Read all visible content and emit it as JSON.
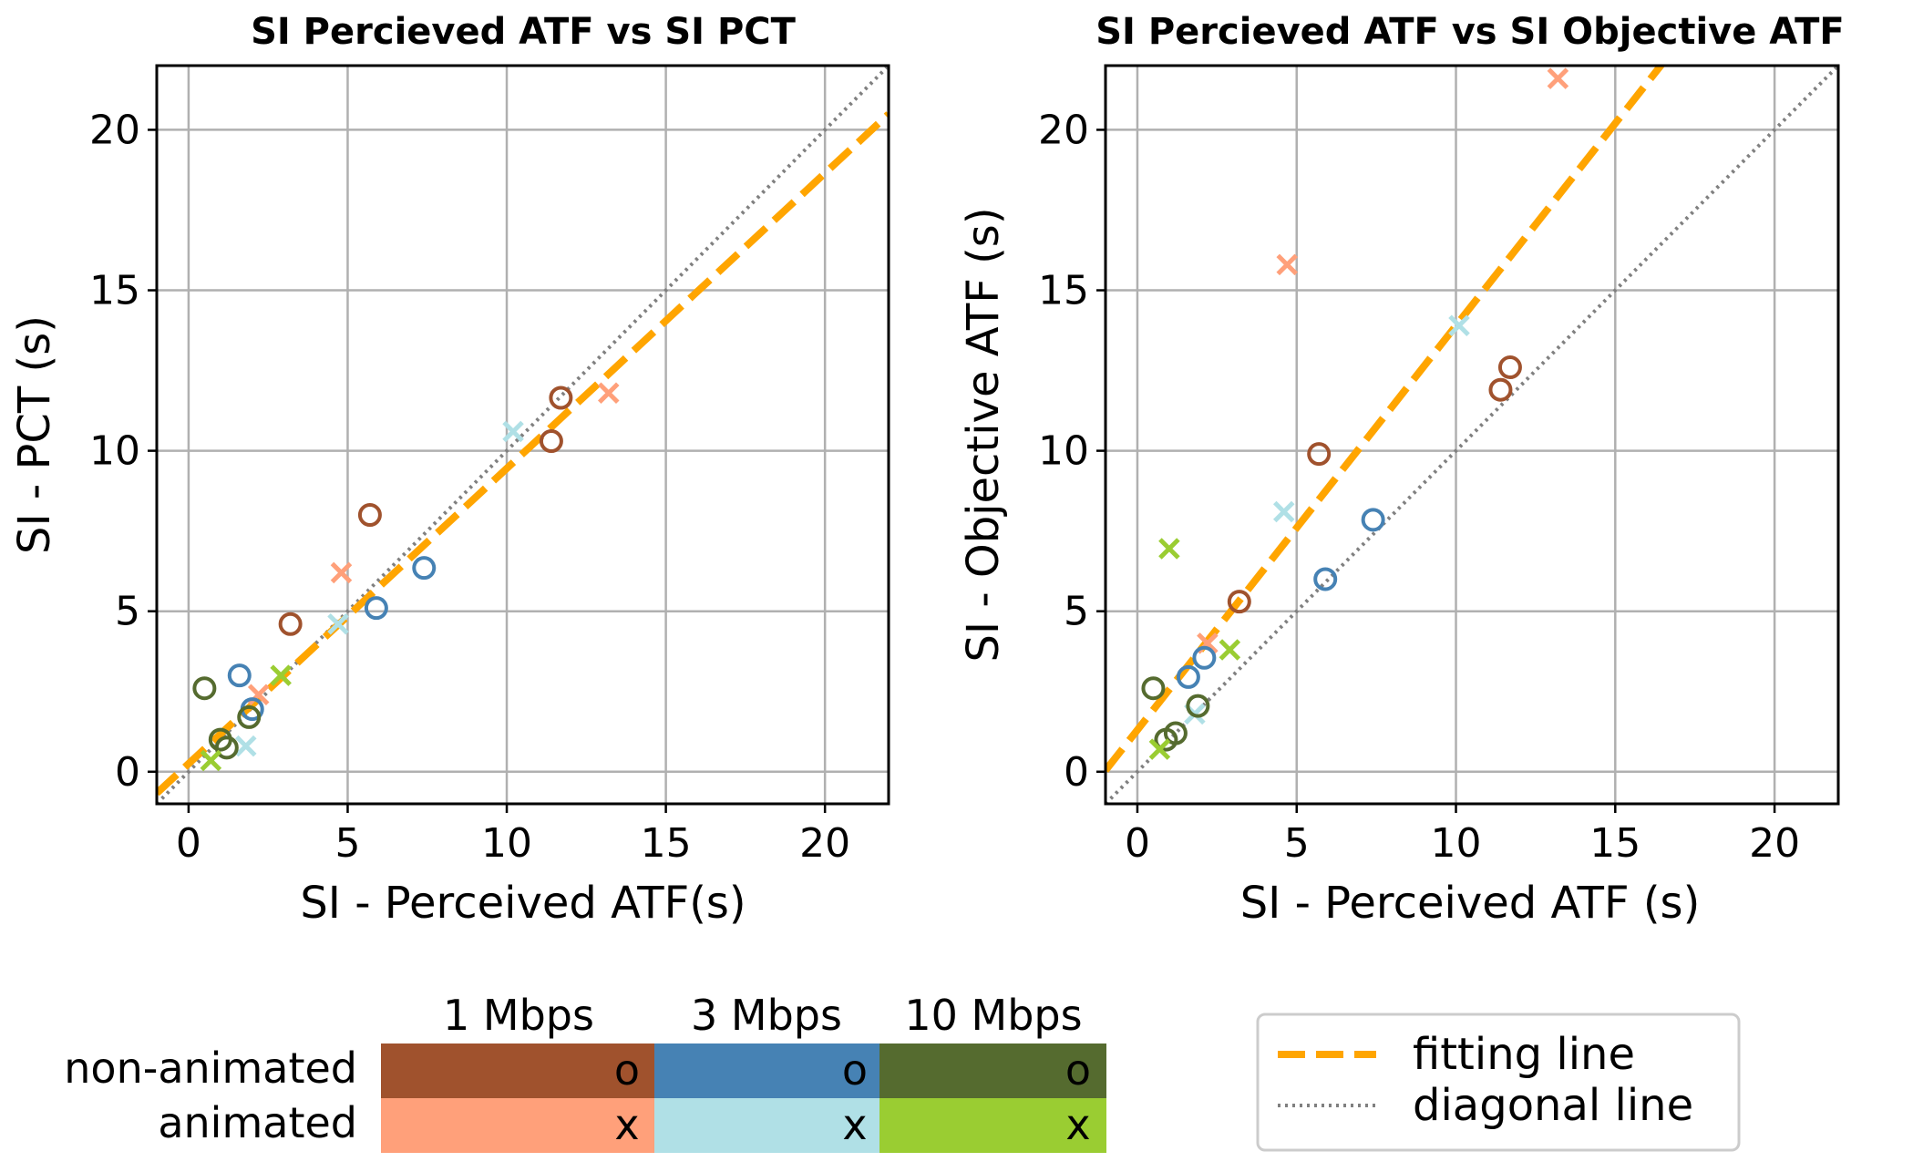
{
  "colors": {
    "fitting": "#FFA500",
    "diagonal": "#808080",
    "grid": "#b0b0b0",
    "1 Mbps non-animated": "#A0522D",
    "1 Mbps animated": "#FFA07A",
    "3 Mbps non-animated": "#4682B4",
    "3 Mbps animated": "#B0E0E6",
    "10 Mbps non-animated": "#556B2F",
    "10 Mbps animated": "#9ACD32"
  },
  "chart_data": [
    {
      "type": "scatter",
      "title": "SI Percieved ATF vs SI PCT",
      "xlabel": "SI - Perceived ATF(s)",
      "ylabel": "SI - PCT (s)",
      "xlim": [
        -1,
        22
      ],
      "ylim": [
        -1,
        22
      ],
      "xticks": [
        0,
        5,
        10,
        15,
        20
      ],
      "yticks": [
        0,
        5,
        10,
        15,
        20
      ],
      "grid": true,
      "fitting_line": {
        "slope": 0.92,
        "intercept": 0.25
      },
      "diagonal_line": {
        "slope": 1,
        "intercept": 0
      },
      "series": [
        {
          "bandwidth": "1 Mbps",
          "animation": "non-animated",
          "marker": "o",
          "x": [
            3.2,
            5.7,
            11.4,
            11.7
          ],
          "y": [
            4.6,
            8.0,
            10.3,
            11.65
          ]
        },
        {
          "bandwidth": "1 Mbps",
          "animation": "animated",
          "marker": "x",
          "x": [
            2.2,
            4.8,
            13.2
          ],
          "y": [
            2.4,
            6.2,
            11.8
          ]
        },
        {
          "bandwidth": "3 Mbps",
          "animation": "non-animated",
          "marker": "o",
          "x": [
            1.6,
            2.0,
            5.9,
            7.4
          ],
          "y": [
            3.0,
            1.95,
            5.1,
            6.35
          ]
        },
        {
          "bandwidth": "3 Mbps",
          "animation": "animated",
          "marker": "x",
          "x": [
            1.8,
            4.7,
            10.2
          ],
          "y": [
            0.8,
            4.6,
            10.6
          ]
        },
        {
          "bandwidth": "10 Mbps",
          "animation": "non-animated",
          "marker": "o",
          "x": [
            0.5,
            1.0,
            1.2,
            1.9
          ],
          "y": [
            2.6,
            1.0,
            0.75,
            1.7
          ]
        },
        {
          "bandwidth": "10 Mbps",
          "animation": "animated",
          "marker": "x",
          "x": [
            0.7,
            2.9
          ],
          "y": [
            0.35,
            3.0
          ]
        }
      ]
    },
    {
      "type": "scatter",
      "title": "SI Percieved ATF vs SI Objective ATF",
      "xlabel": "SI - Perceived ATF (s)",
      "ylabel": "SI - Objective ATF (s)",
      "xlim": [
        -1,
        22
      ],
      "ylim": [
        -1,
        22
      ],
      "xticks": [
        0,
        5,
        10,
        15,
        20
      ],
      "yticks": [
        0,
        5,
        10,
        15,
        20
      ],
      "grid": true,
      "fitting_line": {
        "slope": 1.26,
        "intercept": 1.3
      },
      "diagonal_line": {
        "slope": 1,
        "intercept": 0
      },
      "series": [
        {
          "bandwidth": "1 Mbps",
          "animation": "non-animated",
          "marker": "o",
          "x": [
            3.2,
            5.7,
            11.4,
            11.7
          ],
          "y": [
            5.3,
            9.9,
            11.9,
            12.6
          ]
        },
        {
          "bandwidth": "1 Mbps",
          "animation": "animated",
          "marker": "x",
          "x": [
            2.2,
            4.7,
            13.2
          ],
          "y": [
            4.0,
            15.8,
            21.6
          ]
        },
        {
          "bandwidth": "3 Mbps",
          "animation": "non-animated",
          "marker": "o",
          "x": [
            1.6,
            2.1,
            5.9,
            7.4
          ],
          "y": [
            2.95,
            3.55,
            6.0,
            7.85
          ]
        },
        {
          "bandwidth": "3 Mbps",
          "animation": "animated",
          "marker": "x",
          "x": [
            1.8,
            4.6,
            10.1
          ],
          "y": [
            1.8,
            8.1,
            13.9
          ]
        },
        {
          "bandwidth": "10 Mbps",
          "animation": "non-animated",
          "marker": "o",
          "x": [
            0.5,
            0.9,
            1.2,
            1.9
          ],
          "y": [
            2.6,
            1.0,
            1.2,
            2.05
          ]
        },
        {
          "bandwidth": "10 Mbps",
          "animation": "animated",
          "marker": "x",
          "x": [
            0.7,
            1.0,
            2.9
          ],
          "y": [
            0.7,
            6.95,
            3.8
          ]
        }
      ]
    }
  ],
  "key": {
    "columns": [
      "1 Mbps",
      "3 Mbps",
      "10 Mbps"
    ],
    "rows": [
      "non-animated",
      "animated"
    ],
    "cells": [
      [
        "o",
        "o",
        "o"
      ],
      [
        "x",
        "x",
        "x"
      ]
    ]
  },
  "legend": {
    "fitting_label": "fitting line",
    "diagonal_label": "diagonal line"
  }
}
